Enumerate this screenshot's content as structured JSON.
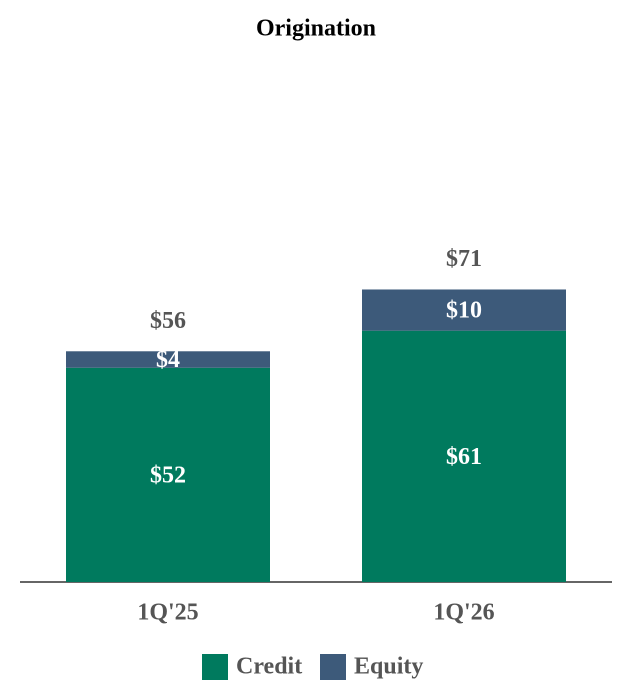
{
  "chart_data": {
    "type": "stacked-bar",
    "title": "Origination",
    "categories": [
      "1Q'25",
      "1Q'26"
    ],
    "series": [
      {
        "name": "Credit",
        "color": "#007a5e",
        "values": [
          52,
          61
        ],
        "value_labels": [
          "$52",
          "$61"
        ]
      },
      {
        "name": "Equity",
        "color": "#3d5a7a",
        "values": [
          4,
          10
        ],
        "value_labels": [
          "$4",
          "$10"
        ]
      }
    ],
    "totals": {
      "values": [
        56,
        71
      ],
      "value_labels": [
        "$56",
        "$71"
      ]
    }
  }
}
